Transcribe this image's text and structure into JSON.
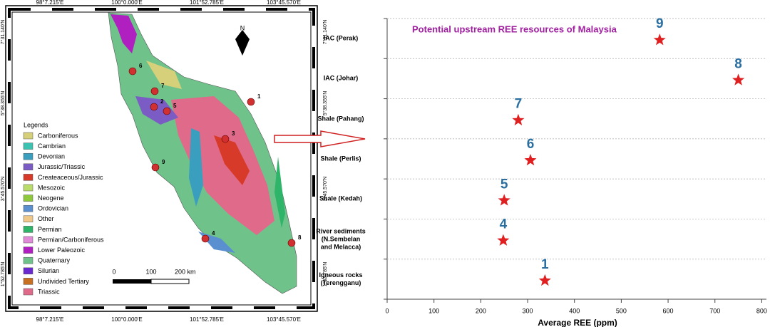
{
  "map": {
    "top_labels": [
      "98°7.215'E",
      "100°0.000'E",
      "101°52.785'E",
      "103°45.570'E"
    ],
    "bottom_labels": [
      "98°7.215'E",
      "100°0.000'E",
      "101°52.785'E",
      "103°45.570'E"
    ],
    "left_labels": [
      "7°31.140'N",
      "5°38.355'N",
      "3°45.570'N",
      "1°52.785'N"
    ],
    "right_labels": [
      "7°31.140'N",
      "5°38.355'N",
      "3°45.570'N",
      "1°52.785'N"
    ],
    "north": "N",
    "legend_title": "Legends",
    "legend": [
      {
        "label": "Carboniferous",
        "color": "#d6d07a"
      },
      {
        "label": "Cambrian",
        "color": "#3cc2b0"
      },
      {
        "label": "Devonian",
        "color": "#3a9fbf"
      },
      {
        "label": "Jurassic/Triassic",
        "color": "#7a5cc4"
      },
      {
        "label": "Createaceous/Jurassic",
        "color": "#d83a2a"
      },
      {
        "label": "Mesozoic",
        "color": "#b9dc6a"
      },
      {
        "label": "Neogene",
        "color": "#8ec83c"
      },
      {
        "label": "Ordovician",
        "color": "#5a8fd0"
      },
      {
        "label": "Other",
        "color": "#f0c88a"
      },
      {
        "label": "Permian",
        "color": "#2fb56a"
      },
      {
        "label": "Permian/Carboniferous",
        "color": "#e08ad8"
      },
      {
        "label": "Lower Paleozoic",
        "color": "#b020c0"
      },
      {
        "label": "Quaternary",
        "color": "#6fc38a"
      },
      {
        "label": "Silurian",
        "color": "#6a2ad0"
      },
      {
        "label": "Undivided Tertiary",
        "color": "#c87020"
      },
      {
        "label": "Triassic",
        "color": "#e06a8a"
      }
    ],
    "scale_labels": [
      "0",
      "100",
      "200 km"
    ],
    "points": [
      "1",
      "2",
      "3",
      "4",
      "5",
      "6",
      "7",
      "8",
      "9"
    ]
  },
  "chart_data": {
    "type": "scatter",
    "title": "Potential upstream REE resources of Malaysia",
    "x_label": "Average REE (ppm)",
    "categories": [
      "IAC (Perak)",
      "IAC (Johar)",
      "Shale (Pahang)",
      "Shale (Perlis)",
      "Shale (Kedah)",
      "River sediments\n(N.Sembelan\nand Melacca)",
      "Igneous rocks\n(Terengganu)"
    ],
    "values": [
      582,
      750,
      280,
      306,
      250,
      248,
      337
    ],
    "point_labels": [
      "9",
      "8",
      "7",
      "6",
      "5",
      "4",
      "1"
    ],
    "color": "#e02020",
    "label_color": "#2a6fa0",
    "xlim": [
      0,
      810
    ],
    "xticks": [
      0,
      100,
      200,
      300,
      400,
      500,
      600,
      700,
      800
    ],
    "grid": true
  }
}
